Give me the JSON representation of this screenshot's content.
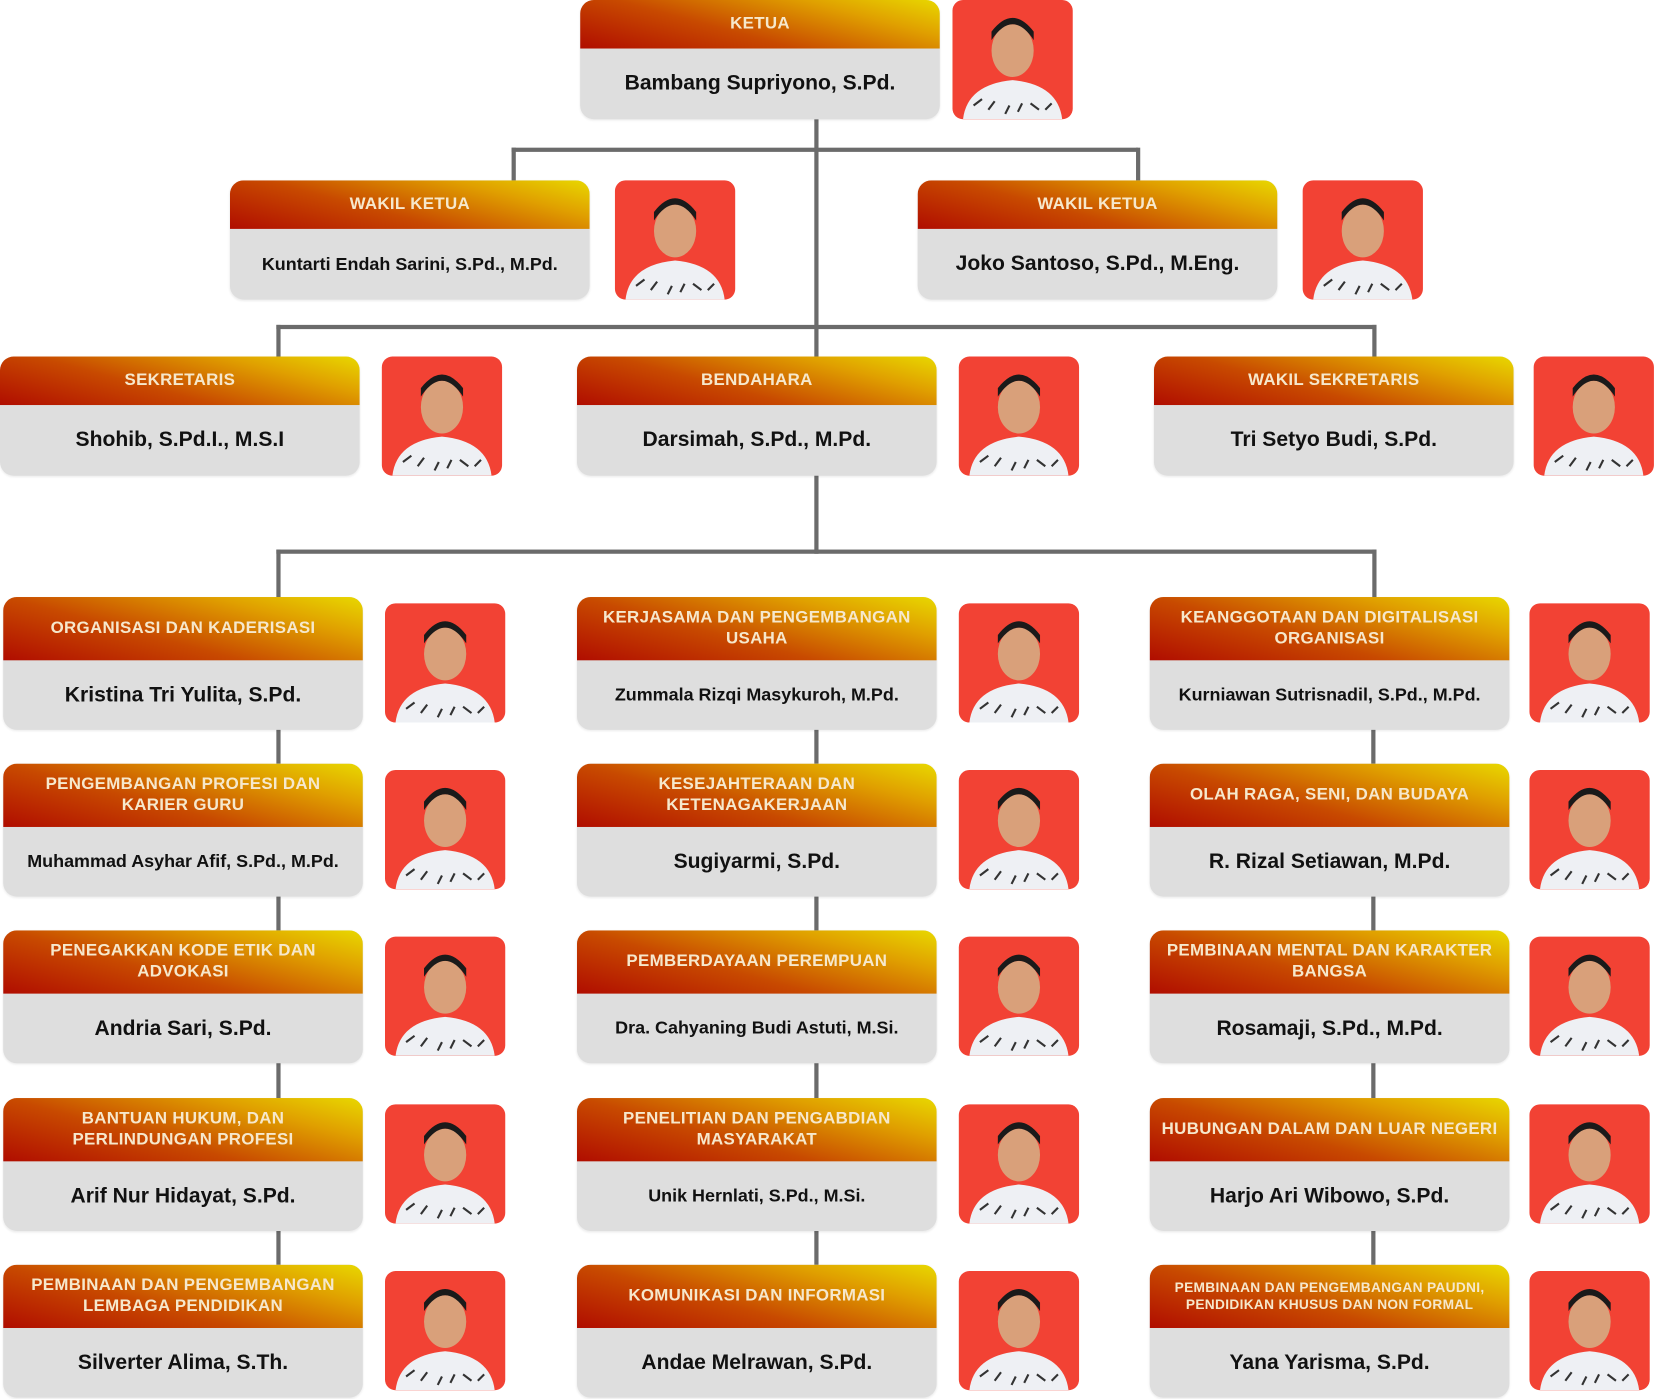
{
  "colors": {
    "header_start": "#b00d00",
    "header_end": "#e8d800",
    "body": "#dedede",
    "photo_bg": "#f24234",
    "connector": "#6b6b6b"
  },
  "leaders": [
    {
      "title": "KETUA",
      "name": "Bambang Supriyono, S.Pd."
    },
    {
      "title": "WAKIL KETUA",
      "name": "Kuntarti Endah Sarini, S.Pd., M.Pd."
    },
    {
      "title": "WAKIL KETUA",
      "name": "Joko Santoso, S.Pd., M.Eng."
    },
    {
      "title": "SEKRETARIS",
      "name": "Shohib, S.Pd.I., M.S.I"
    },
    {
      "title": "BENDAHARA",
      "name": "Darsimah, S.Pd., M.Pd."
    },
    {
      "title": "WAKIL SEKRETARIS",
      "name": "Tri Setyo Budi, S.Pd."
    }
  ],
  "divisions": [
    [
      {
        "title": "ORGANISASI DAN KADERISASI",
        "name": "Kristina Tri Yulita, S.Pd."
      },
      {
        "title": "PENGEMBANGAN PROFESI DAN KARIER GURU",
        "name": "Muhammad Asyhar Afif, S.Pd., M.Pd."
      },
      {
        "title": "PENEGAKKAN KODE ETIK DAN ADVOKASI",
        "name": "Andria Sari, S.Pd."
      },
      {
        "title": "BANTUAN HUKUM, DAN PERLINDUNGAN PROFESI",
        "name": "Arif Nur Hidayat, S.Pd."
      },
      {
        "title": "PEMBINAAN DAN PENGEMBANGAN LEMBAGA PENDIDIKAN",
        "name": "Silverter Alima, S.Th."
      }
    ],
    [
      {
        "title": "KERJASAMA DAN PENGEMBANGAN USAHA",
        "name": "Zummala Rizqi Masykuroh, M.Pd."
      },
      {
        "title": "KESEJAHTERAAN DAN KETENAGAKERJAAN",
        "name": "Sugiyarmi, S.Pd."
      },
      {
        "title": "PEMBERDAYAAN PEREMPUAN",
        "name": "Dra. Cahyaning Budi Astuti, M.Si."
      },
      {
        "title": "PENELITIAN DAN PENGABDIAN MASYARAKAT",
        "name": "Unik Hernlati, S.Pd., M.Si."
      },
      {
        "title": "KOMUNIKASI DAN INFORMASI",
        "name": "Andae Melrawan, S.Pd."
      }
    ],
    [
      {
        "title": "KEANGGOTAAN DAN DIGITALISASI ORGANISASI",
        "name": "Kurniawan Sutrisnadil, S.Pd., M.Pd."
      },
      {
        "title": "OLAH RAGA, SENI, DAN BUDAYA",
        "name": "R. Rizal Setiawan, M.Pd."
      },
      {
        "title": "PEMBINAAN MENTAL DAN KARAKTER BANGSA",
        "name": "Rosamaji, S.Pd., M.Pd."
      },
      {
        "title": "HUBUNGAN DALAM DAN LUAR NEGERI",
        "name": "Harjo Ari Wibowo, S.Pd."
      },
      {
        "title": "PEMBINAAN DAN PENGEMBANGAN PAUDNI, PENDIDIKAN KHUSUS DAN NON FORMAL",
        "name": "Yana Yarisma, S.Pd."
      }
    ]
  ]
}
